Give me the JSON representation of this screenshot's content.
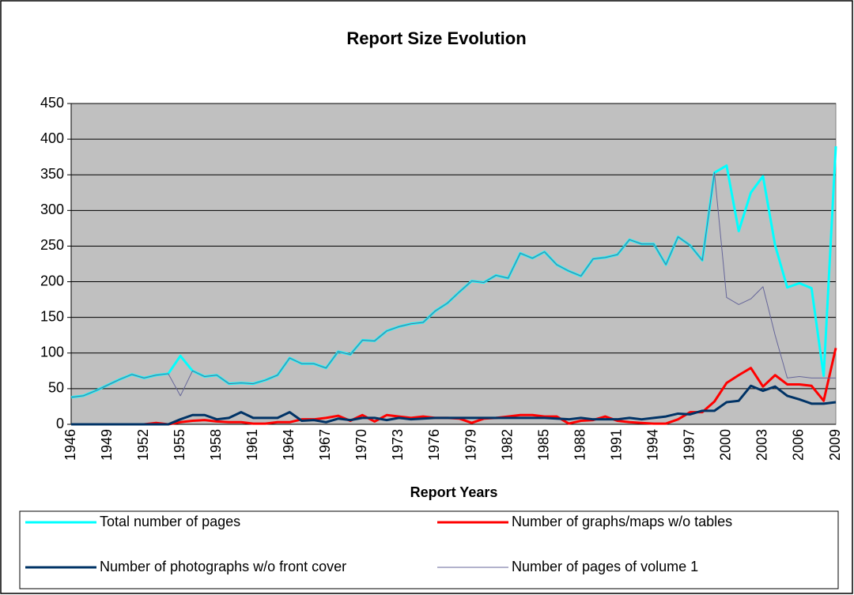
{
  "chart_data": {
    "type": "line",
    "title": "Report Size Evolution",
    "x_label": "Report Years",
    "categories": [
      "1946",
      null,
      null,
      "1949",
      null,
      null,
      "1952",
      null,
      null,
      "1955",
      null,
      null,
      "1958",
      null,
      null,
      "1961",
      null,
      null,
      "1964",
      null,
      null,
      "1967",
      null,
      null,
      "1970",
      null,
      null,
      "1973",
      null,
      null,
      "1976",
      null,
      null,
      "1979",
      null,
      null,
      "1982",
      null,
      null,
      "1985",
      null,
      null,
      "1988",
      null,
      null,
      "1991",
      null,
      null,
      "1994",
      null,
      null,
      "1997",
      null,
      null,
      "2000",
      null,
      null,
      "2003",
      null,
      null,
      "2006",
      null,
      null,
      "2009"
    ],
    "ylim": [
      0,
      450
    ],
    "yticks": [
      0,
      50,
      100,
      150,
      200,
      250,
      300,
      350,
      400,
      450
    ],
    "grid": true,
    "legend": "bottom",
    "plot_background": "#c0c0c0",
    "series": [
      {
        "name": "Total number of pages",
        "color": "#00ffff",
        "line_width": 3,
        "values": [
          38,
          40,
          47,
          55,
          63,
          70,
          65,
          69,
          71,
          96,
          75,
          67,
          69,
          57,
          58,
          57,
          62,
          69,
          93,
          85,
          85,
          79,
          102,
          98,
          118,
          117,
          131,
          137,
          141,
          143,
          159,
          170,
          186,
          201,
          199,
          209,
          205,
          240,
          233,
          242,
          224,
          215,
          208,
          232,
          234,
          238,
          259,
          253,
          253,
          224,
          263,
          251,
          230,
          353,
          363,
          271,
          325,
          348,
          251,
          192,
          198,
          191,
          68,
          390
        ]
      },
      {
        "name": "Number of graphs/maps w/o tables",
        "color": "#ff0000",
        "line_width": 3,
        "values": [
          0,
          0,
          0,
          0,
          0,
          0,
          0,
          2,
          0,
          3,
          5,
          6,
          4,
          3,
          3,
          1,
          1,
          3,
          3,
          7,
          7,
          9,
          12,
          5,
          13,
          4,
          13,
          11,
          9,
          11,
          9,
          9,
          8,
          2,
          8,
          9,
          11,
          13,
          13,
          11,
          11,
          1,
          5,
          6,
          11,
          5,
          3,
          2,
          1,
          1,
          7,
          17,
          17,
          32,
          58,
          69,
          79,
          53,
          69,
          56,
          56,
          54,
          33,
          107
        ]
      },
      {
        "name": "Number of photographs w/o front cover",
        "color": "#003366",
        "line_width": 3,
        "values": [
          0,
          0,
          0,
          0,
          0,
          0,
          0,
          0,
          0,
          7,
          13,
          13,
          7,
          9,
          17,
          9,
          9,
          9,
          17,
          5,
          6,
          3,
          8,
          6,
          9,
          9,
          6,
          9,
          7,
          8,
          9,
          9,
          9,
          9,
          9,
          9,
          9,
          9,
          9,
          9,
          8,
          7,
          9,
          7,
          7,
          7,
          9,
          7,
          9,
          11,
          15,
          14,
          19,
          19,
          31,
          33,
          54,
          47,
          53,
          40,
          35,
          29,
          29,
          31
        ]
      },
      {
        "name": "Number of pages of volume 1",
        "color": "#666699",
        "line_width": 1,
        "values": [
          38,
          40,
          47,
          55,
          63,
          70,
          65,
          69,
          71,
          40,
          75,
          67,
          69,
          57,
          58,
          57,
          62,
          69,
          93,
          85,
          85,
          79,
          102,
          98,
          118,
          117,
          131,
          137,
          141,
          143,
          159,
          170,
          186,
          201,
          199,
          209,
          205,
          240,
          233,
          242,
          224,
          215,
          208,
          232,
          234,
          238,
          259,
          253,
          253,
          224,
          263,
          251,
          230,
          353,
          178,
          168,
          176,
          193,
          125,
          65,
          67,
          65,
          65,
          65
        ]
      }
    ]
  }
}
